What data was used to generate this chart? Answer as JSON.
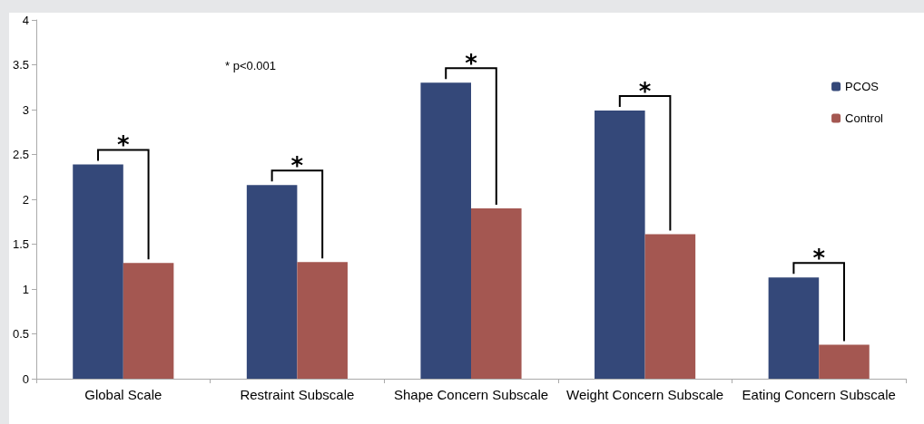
{
  "chart_data": {
    "type": "bar",
    "categories": [
      "Global Scale",
      "Restraint Subscale",
      "Shape Concern Subscale",
      "Weight Concern Subscale",
      "Eating Concern Subscale"
    ],
    "series": [
      {
        "name": "PCOS",
        "color": "#344879",
        "values": [
          2.39,
          2.16,
          3.3,
          2.99,
          1.13
        ]
      },
      {
        "name": "Control",
        "color": "#a45751",
        "values": [
          1.29,
          1.3,
          1.9,
          1.61,
          0.38
        ]
      }
    ],
    "ylim": [
      0,
      4
    ],
    "yticks": [
      0,
      0.5,
      1,
      1.5,
      2,
      2.5,
      3,
      3.5,
      4
    ],
    "grid": false,
    "legend": "top right",
    "annotations": [
      "* p<0.001",
      {
        "text": "*",
        "x": "Global Scale",
        "y": 2.39
      },
      {
        "text": "*",
        "x": "Restraint Subscale",
        "y": 2.16
      },
      {
        "text": "*",
        "x": "Shape Concern Subscale",
        "y": 3.3
      },
      {
        "text": "*",
        "x": "Weight Concern Subscale",
        "y": 2.99
      },
      {
        "text": "*",
        "x": "Eating Concern Subscale",
        "y": 1.13
      }
    ]
  }
}
